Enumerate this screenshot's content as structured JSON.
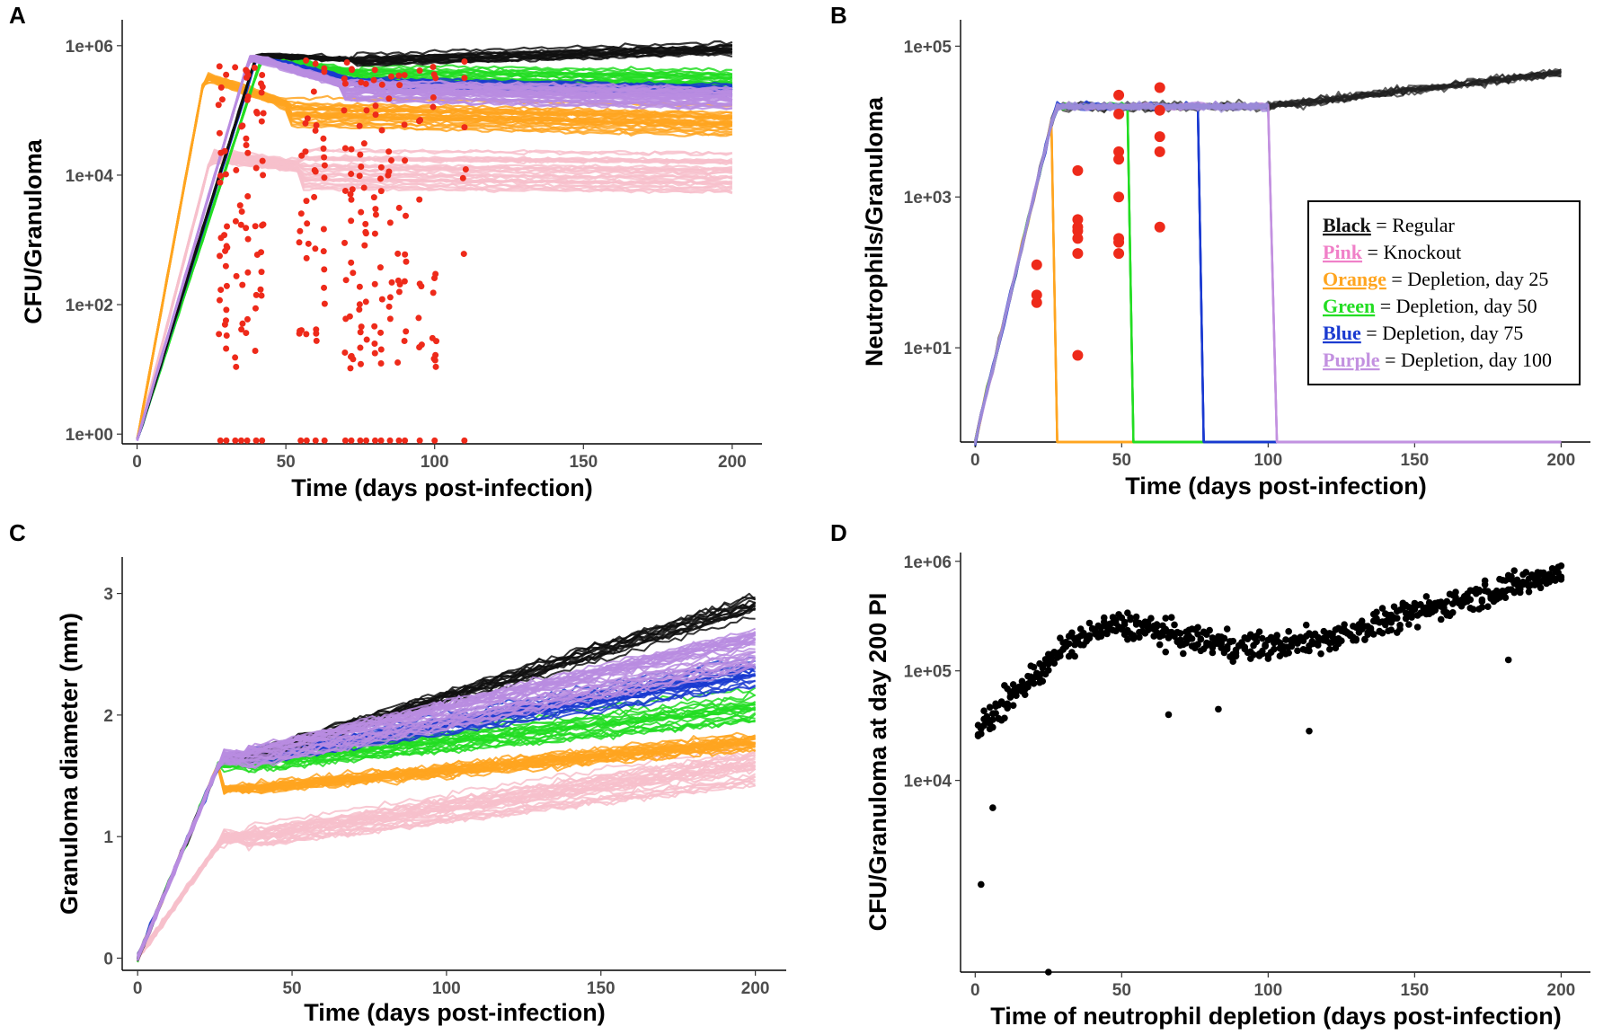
{
  "chart_data": [
    {
      "panel": "A",
      "type": "line",
      "ylabel": "CFU/Granuloma",
      "xlabel": "Time (days post-infection)",
      "xlim": [
        -5,
        210
      ],
      "xticks": [
        0,
        50,
        100,
        150,
        200
      ],
      "yscale": "log10",
      "ylim_log10": [
        -0.15,
        6.4
      ],
      "yticks_log10": [
        0,
        2,
        4,
        6
      ],
      "ytick_labels": [
        "1e+00",
        "1e+02",
        "1e+04",
        "1e+06"
      ],
      "series": [
        {
          "name": "Knockout",
          "color": "#f7c0cb",
          "count": 30,
          "peak_day": 30,
          "peak_log10": 4.3,
          "end_log10": 4.05,
          "spread": 0.35
        },
        {
          "name": "Depletion, day 25",
          "color": "#ffa520",
          "count": 25,
          "peak_day": 27,
          "peak_log10": 5.5,
          "end_log10": 4.8,
          "spread": 0.22
        },
        {
          "name": "Depletion, day 50",
          "color": "#22dd22",
          "count": 20,
          "peak_day": 50,
          "peak_log10": 5.8,
          "end_log10": 5.45,
          "spread": 0.15
        },
        {
          "name": "Depletion, day 75",
          "color": "#1a3ad0",
          "count": 20,
          "peak_day": 48,
          "peak_log10": 5.8,
          "end_log10": 5.3,
          "spread": 0.12
        },
        {
          "name": "Regular",
          "color": "#111111",
          "count": 15,
          "peak_day": 48,
          "peak_log10": 5.85,
          "end_log10": 5.75,
          "spread": 0.12
        },
        {
          "name": "Depletion, day 100",
          "color": "#b88ce0",
          "count": 30,
          "peak_day": 45,
          "peak_log10": 5.8,
          "end_log10": 5.2,
          "spread": 0.15
        }
      ],
      "experimental_points": {
        "color": "#ee2a1a",
        "days": [
          28,
          30,
          33,
          35,
          37,
          40,
          42,
          55,
          57,
          60,
          63,
          70,
          72,
          75,
          77,
          80,
          82,
          85,
          88,
          90,
          95,
          100,
          110
        ],
        "range_log10": [
          1.0,
          5.8
        ]
      }
    },
    {
      "panel": "B",
      "type": "line",
      "ylabel": "Neutrophils/Granuloma",
      "xlabel": "Time (days post-infection)",
      "xlim": [
        -5,
        210
      ],
      "xticks": [
        0,
        50,
        100,
        150,
        200
      ],
      "yscale": "log10",
      "ylim_log10": [
        -0.25,
        5.35
      ],
      "yticks_log10": [
        1,
        3,
        5
      ],
      "ytick_labels": [
        "1e+01",
        "1e+03",
        "1e+05"
      ],
      "series": [
        {
          "name": "Regular",
          "color": "#222222",
          "count": 15,
          "end_log10": 4.65
        },
        {
          "name": "Depletion, day 25",
          "color": "#ffa520",
          "drop_day": 28
        },
        {
          "name": "Depletion, day 50",
          "color": "#22dd22",
          "drop_day": 54
        },
        {
          "name": "Depletion, day 75",
          "color": "#1a3ad0",
          "drop_day": 78
        },
        {
          "name": "Depletion, day 100",
          "color": "#c391e0",
          "drop_day": 103
        }
      ],
      "plateau_log10": 4.2,
      "experimental_points": {
        "color": "#ee2a1a",
        "points": [
          [
            21,
            2.1
          ],
          [
            21,
            1.7
          ],
          [
            21,
            1.6
          ],
          [
            35,
            3.35
          ],
          [
            35,
            2.7
          ],
          [
            35,
            2.6
          ],
          [
            35,
            2.55
          ],
          [
            35,
            2.45
          ],
          [
            35,
            2.25
          ],
          [
            35,
            0.9
          ],
          [
            49,
            4.35
          ],
          [
            49,
            4.1
          ],
          [
            49,
            3.6
          ],
          [
            49,
            3.5
          ],
          [
            49,
            3.0
          ],
          [
            49,
            2.45
          ],
          [
            49,
            2.4
          ],
          [
            49,
            2.25
          ],
          [
            63,
            4.45
          ],
          [
            63,
            4.15
          ],
          [
            63,
            3.8
          ],
          [
            63,
            3.6
          ],
          [
            63,
            2.6
          ]
        ]
      },
      "legend": [
        {
          "key": "Black",
          "color": "#111111",
          "label": "= Regular"
        },
        {
          "key": "Pink",
          "color": "#f080c8",
          "label": "= Knockout"
        },
        {
          "key": "Orange",
          "color": "#ffa520",
          "label": "= Depletion, day 25"
        },
        {
          "key": "Green",
          "color": "#22dd22",
          "label": "= Depletion, day 50"
        },
        {
          "key": "Blue",
          "color": "#1a3ad0",
          "label": "= Depletion, day 75"
        },
        {
          "key": "Purple",
          "color": "#c391e0",
          "label": "= Depletion, day 100"
        }
      ],
      "legend_position": "center-right"
    },
    {
      "panel": "C",
      "type": "line",
      "ylabel": "Granuloma diameter (mm)",
      "xlabel": "Time (days post-infection)",
      "xlim": [
        -5,
        210
      ],
      "xticks": [
        0,
        50,
        100,
        150,
        200
      ],
      "ylim": [
        -0.1,
        3.3
      ],
      "yticks": [
        0,
        1,
        2,
        3
      ],
      "series": [
        {
          "name": "Knockout",
          "color": "#f7c0cb",
          "count": 30,
          "plateau": 1.0,
          "end": 1.6,
          "spread": 0.15
        },
        {
          "name": "Depletion, day 25",
          "color": "#ffa520",
          "count": 25,
          "plateau": 1.4,
          "end": 1.8,
          "spread": 0.12
        },
        {
          "name": "Depletion, day 50",
          "color": "#22dd22",
          "count": 20,
          "plateau": 1.6,
          "end": 2.05,
          "spread": 0.12
        },
        {
          "name": "Depletion, day 75",
          "color": "#1a3ad0",
          "count": 20,
          "plateau": 1.65,
          "end": 2.35,
          "spread": 0.15
        },
        {
          "name": "Regular",
          "color": "#111111",
          "count": 15,
          "plateau": 1.65,
          "end": 2.9,
          "spread": 0.08
        },
        {
          "name": "Depletion, day 100",
          "color": "#b88ce0",
          "count": 30,
          "plateau": 1.65,
          "end": 2.55,
          "spread": 0.2
        }
      ]
    },
    {
      "panel": "D",
      "type": "scatter",
      "ylabel": "CFU/Granuloma at day 200 PI",
      "xlabel": "Time of neutrophil depletion (days post-infection)",
      "xlim": [
        -5,
        210
      ],
      "xticks": [
        0,
        50,
        100,
        150,
        200
      ],
      "yscale": "log10",
      "ylim_log10": [
        2.25,
        6.08
      ],
      "yticks_log10": [
        4,
        5,
        6
      ],
      "ytick_labels": [
        "1e+04",
        "1e+05",
        "1e+06"
      ],
      "color": "#000000",
      "trend_log10": [
        [
          1,
          4.45
        ],
        [
          10,
          4.7
        ],
        [
          20,
          4.95
        ],
        [
          30,
          5.2
        ],
        [
          40,
          5.35
        ],
        [
          50,
          5.42
        ],
        [
          60,
          5.38
        ],
        [
          70,
          5.3
        ],
        [
          80,
          5.27
        ],
        [
          90,
          5.23
        ],
        [
          100,
          5.22
        ],
        [
          110,
          5.25
        ],
        [
          120,
          5.3
        ],
        [
          130,
          5.37
        ],
        [
          140,
          5.45
        ],
        [
          150,
          5.52
        ],
        [
          160,
          5.6
        ],
        [
          170,
          5.68
        ],
        [
          180,
          5.75
        ],
        [
          190,
          5.82
        ],
        [
          200,
          5.9
        ]
      ],
      "points_per_day": 3,
      "outliers_log10": [
        [
          2,
          3.05
        ],
        [
          6,
          3.75
        ],
        [
          25,
          2.25
        ],
        [
          66,
          4.6
        ],
        [
          83,
          4.65
        ],
        [
          114,
          4.45
        ],
        [
          182,
          5.1
        ]
      ]
    }
  ]
}
